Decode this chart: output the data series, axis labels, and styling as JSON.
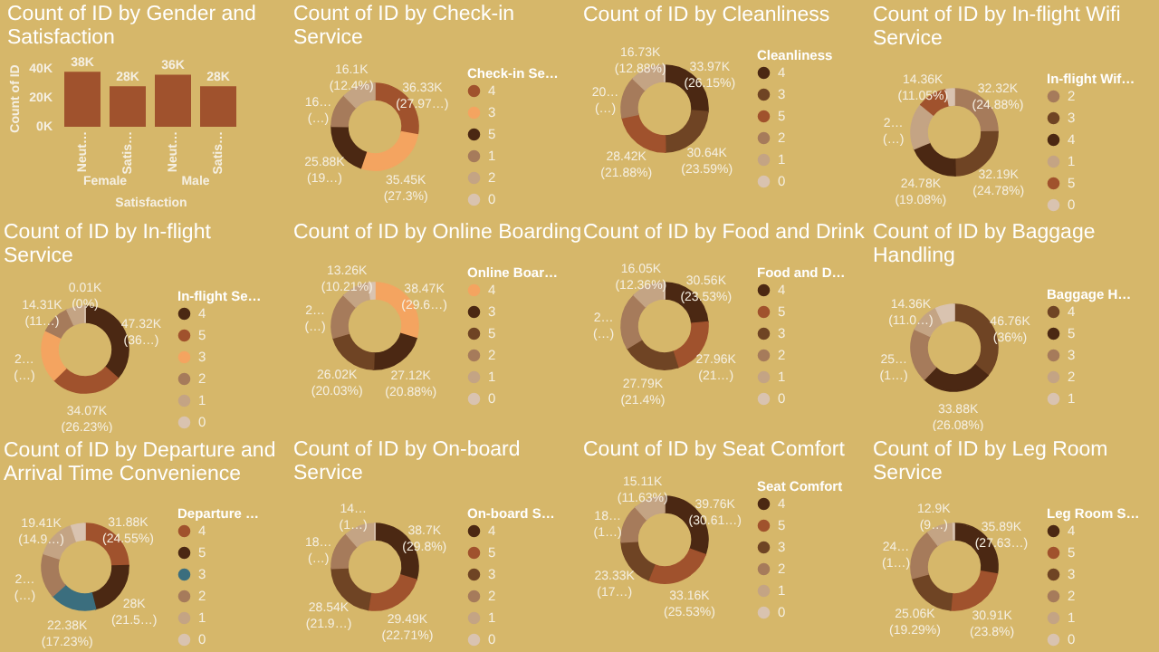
{
  "chart_data": [
    {
      "type": "bar",
      "title": "Count of ID by Gender and Satisfaction",
      "xlabel": "Satisfaction",
      "ylabel": "Count of ID",
      "categories": [
        "Neut…",
        "Satis…",
        "Neut…",
        "Satis…"
      ],
      "values": [
        38000,
        28000,
        36000,
        28000
      ],
      "value_labels": [
        "38K",
        "28K",
        "36K",
        "28K"
      ],
      "color": "#a0522d",
      "ylim": [
        0,
        40000
      ],
      "yticks": [
        {
          "value": 0,
          "label": "0K"
        },
        {
          "value": 20000,
          "label": "20K"
        },
        {
          "value": 40000,
          "label": "40K"
        }
      ],
      "annotations": [
        "Female",
        "Male"
      ]
    },
    {
      "type": "donut",
      "title": "Count of ID by Check-in Service",
      "legend_title": "Check-in Se…",
      "legend": "right",
      "categories": [
        "4",
        "3",
        "5",
        "1",
        "2",
        "0"
      ],
      "values": [
        36330,
        35450,
        25880,
        16110,
        16100,
        null
      ],
      "colors": [
        "#a0522d",
        "#f4a460",
        "#4b2813",
        "#a67b5b",
        "#c4a484",
        "#d9c3b0"
      ],
      "value_labels": [
        "36.33K (27.97…)",
        "35.45K (27.3%)",
        "25.88K (19…)",
        null,
        "16.1K (12.4%)",
        null
      ],
      "annotations": [
        {
          "text": "16… (…)",
          "x": "1"
        }
      ]
    },
    {
      "type": "donut",
      "title": "Count of ID by Cleanliness",
      "legend_title": "Cleanliness",
      "legend": "right",
      "categories": [
        "4",
        "3",
        "5",
        "2",
        "1",
        "0"
      ],
      "values": [
        33970,
        30640,
        28420,
        20110,
        16730,
        10
      ],
      "colors": [
        "#4b2813",
        "#6f4424",
        "#a0522d",
        "#a67b5b",
        "#c4a484",
        "#d9c3b0"
      ],
      "value_labels": [
        "33.97K (26.15%)",
        "30.64K (23.59%)",
        "28.42K (21.88%)",
        null,
        "16.73K (12.88%)",
        null
      ],
      "annotations": [
        {
          "text": "20… (…)",
          "x": "2"
        }
      ]
    },
    {
      "type": "donut",
      "title": "Count of ID by In-flight Wifi Service",
      "legend_title": "In-flight Wif…",
      "legend": "right",
      "categories": [
        "2",
        "3",
        "4",
        "1",
        "5",
        "0"
      ],
      "values": [
        32320,
        32190,
        24780,
        22330,
        14360,
        3900
      ],
      "colors": [
        "#a67b5b",
        "#6f4424",
        "#4b2813",
        "#c4a484",
        "#a0522d",
        "#d9c3b0"
      ],
      "value_labels": [
        "32.32K (24.88%)",
        "32.19K (24.78%)",
        "24.78K (19.08%)",
        null,
        "14.36K (11.05%)",
        null
      ],
      "annotations": [
        {
          "text": "2… (…)",
          "x": "1"
        }
      ]
    },
    {
      "type": "donut",
      "title": "Count of ID by In-flight Service",
      "legend_title": "In-flight Se…",
      "legend": "right",
      "categories": [
        "4",
        "5",
        "3",
        "2",
        "1",
        "0"
      ],
      "values": [
        47320,
        34070,
        25320,
        14310,
        8860,
        10
      ],
      "colors": [
        "#4b2813",
        "#a0522d",
        "#f4a460",
        "#a67b5b",
        "#c4a484",
        "#d9c3b0"
      ],
      "value_labels": [
        "47.32K (36…)",
        "34.07K (26.23%)",
        null,
        "14.31K (11…)",
        null,
        "0.01K (0%)"
      ],
      "annotations": [
        {
          "text": "2… (…)",
          "x": "3"
        }
      ]
    },
    {
      "type": "donut",
      "title": "Count of ID by Online Boarding",
      "legend_title": "Online Boar…",
      "legend": "right",
      "categories": [
        "4",
        "3",
        "5",
        "2",
        "1",
        "0"
      ],
      "values": [
        38470,
        27120,
        26020,
        21930,
        13260,
        3080
      ],
      "colors": [
        "#f4a460",
        "#4b2813",
        "#6f4424",
        "#a67b5b",
        "#c4a484",
        "#d9c3b0"
      ],
      "value_labels": [
        "38.47K (29.6…)",
        "27.12K (20.88%)",
        "26.02K (20.03%)",
        null,
        "13.26K (10.21%)",
        null
      ],
      "annotations": [
        {
          "text": "2… (…)",
          "x": "2"
        }
      ]
    },
    {
      "type": "donut",
      "title": "Count of ID by Food and Drink",
      "legend_title": "Food and D…",
      "legend": "right",
      "categories": [
        "4",
        "5",
        "3",
        "2",
        "1",
        "0"
      ],
      "values": [
        30560,
        27960,
        27790,
        27380,
        16050,
        130
      ],
      "colors": [
        "#4b2813",
        "#a0522d",
        "#6f4424",
        "#a67b5b",
        "#c4a484",
        "#d9c3b0"
      ],
      "value_labels": [
        "30.56K (23.53%)",
        "27.96K (21…)",
        "27.79K (21.4%)",
        null,
        "16.05K (12.36%)",
        null
      ],
      "annotations": [
        {
          "text": "2… (…)",
          "x": "2"
        }
      ]
    },
    {
      "type": "donut",
      "title": "Count of ID by Baggage Handling",
      "legend_title": "Baggage H…",
      "legend": "right",
      "categories": [
        "4",
        "5",
        "3",
        "2",
        "1"
      ],
      "values": [
        46760,
        33880,
        25850,
        14360,
        9030
      ],
      "colors": [
        "#6f4424",
        "#4b2813",
        "#a67b5b",
        "#c4a484",
        "#d9c3b0"
      ],
      "value_labels": [
        "46.76K (36%)",
        "33.88K (26.08%)",
        null,
        "14.36K (11.0…)",
        null
      ],
      "annotations": [
        {
          "text": "25… (1…)",
          "x": "3"
        }
      ]
    },
    {
      "type": "donut",
      "title": "Count of ID by Departure and Arrival Time Convenience",
      "legend_title": "Departure …",
      "legend": "right",
      "categories": [
        "4",
        "5",
        "3",
        "2",
        "1",
        "0"
      ],
      "values": [
        31880,
        28000,
        22380,
        21530,
        19410,
        6690
      ],
      "colors": [
        "#a0522d",
        "#4b2813",
        "#3b6e7e",
        "#a67b5b",
        "#c4a484",
        "#d9c3b0"
      ],
      "value_labels": [
        "31.88K (24.55%)",
        "28K (21.5…)",
        "22.38K (17.23%)",
        null,
        "19.41K (14.9…)",
        null
      ],
      "annotations": [
        {
          "text": "2… (…)",
          "x": "2"
        }
      ]
    },
    {
      "type": "donut",
      "title": "Count of ID by On-board Service",
      "legend_title": "On-board S…",
      "legend": "right",
      "categories": [
        "4",
        "5",
        "3",
        "2",
        "1",
        "0"
      ],
      "values": [
        38700,
        29490,
        28540,
        18350,
        14790,
        5
      ],
      "colors": [
        "#4b2813",
        "#a0522d",
        "#6f4424",
        "#a67b5b",
        "#c4a484",
        "#d9c3b0"
      ],
      "value_labels": [
        "38.7K (29.8%)",
        "29.49K (22.71%)",
        "28.54K (21.9…)",
        null,
        null,
        null
      ],
      "annotations": [
        {
          "text": "18… (…)",
          "x": "2"
        },
        {
          "text": "14… (1…)",
          "x": "1"
        }
      ]
    },
    {
      "type": "donut",
      "title": "Count of ID by Seat Comfort",
      "legend_title": "Seat Comfort",
      "legend": "right",
      "categories": [
        "4",
        "5",
        "3",
        "2",
        "1",
        "0"
      ],
      "values": [
        39760,
        33160,
        23330,
        18530,
        15110,
        null
      ],
      "colors": [
        "#4b2813",
        "#a0522d",
        "#6f4424",
        "#a67b5b",
        "#c4a484",
        "#d9c3b0"
      ],
      "value_labels": [
        "39.76K (30.61…)",
        "33.16K (25.53%)",
        "23.33K (17…)",
        null,
        "15.11K (11.63%)",
        null
      ],
      "annotations": [
        {
          "text": "18… (1…)",
          "x": "2"
        }
      ]
    },
    {
      "type": "donut",
      "title": "Count of ID by Leg Room Service",
      "legend_title": "Leg Room S…",
      "legend": "right",
      "categories": [
        "4",
        "5",
        "3",
        "2",
        "1",
        "0"
      ],
      "values": [
        35890,
        30910,
        25060,
        24540,
        12900,
        600
      ],
      "colors": [
        "#4b2813",
        "#a0522d",
        "#6f4424",
        "#a67b5b",
        "#c4a484",
        "#d9c3b0"
      ],
      "value_labels": [
        "35.89K (27.63…)",
        "30.91K (23.8%)",
        "25.06K (19.29%)",
        null,
        "12.9K (9…)",
        null
      ],
      "annotations": [
        {
          "text": "24… (1…)",
          "x": "2"
        }
      ]
    }
  ]
}
